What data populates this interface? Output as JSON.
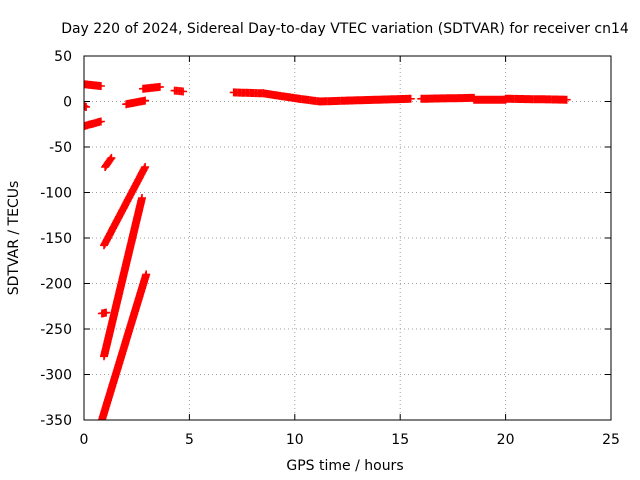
{
  "chart_data": {
    "type": "scatter",
    "title": "Day 220 of 2024, Sidereal Day-to-day VTEC variation (SDTVAR) for receiver cn14",
    "xlabel": "GPS time / hours",
    "ylabel": "SDTVAR / TECUs",
    "xlim": [
      0,
      25
    ],
    "ylim": [
      -350,
      50
    ],
    "xticks": [
      0,
      5,
      10,
      15,
      20,
      25
    ],
    "yticks": [
      50,
      0,
      -50,
      -100,
      -150,
      -200,
      -250,
      -300,
      -350
    ],
    "grid": true,
    "marker": "+",
    "color": "#ff0000",
    "segments": [
      {
        "x": [
          0.0,
          0.8
        ],
        "y": [
          19,
          17
        ]
      },
      {
        "x": [
          0.0,
          0.1
        ],
        "y": [
          -5,
          -6
        ]
      },
      {
        "x": [
          0.0,
          0.8
        ],
        "y": [
          -27,
          -22
        ]
      },
      {
        "x": [
          1.0,
          1.3
        ],
        "y": [
          -72,
          -62
        ]
      },
      {
        "x": [
          0.95,
          2.9
        ],
        "y": [
          -158,
          -72
        ]
      },
      {
        "x": [
          0.85,
          1.05
        ],
        "y": [
          -233,
          -232
        ]
      },
      {
        "x": [
          0.95,
          2.75
        ],
        "y": [
          -280,
          -106
        ]
      },
      {
        "x": [
          0.85,
          2.95
        ],
        "y": [
          -350,
          -190
        ]
      },
      {
        "x": [
          2.0,
          2.9
        ],
        "y": [
          -3,
          1
        ]
      },
      {
        "x": [
          2.8,
          3.6
        ],
        "y": [
          14,
          16
        ]
      },
      {
        "x": [
          4.3,
          4.7
        ],
        "y": [
          12,
          11
        ]
      },
      {
        "x": [
          7.1,
          8.5
        ],
        "y": [
          10,
          9
        ]
      },
      {
        "x": [
          8.5,
          10.2
        ],
        "y": [
          9,
          3
        ]
      },
      {
        "x": [
          10.2,
          11.2
        ],
        "y": [
          3,
          0
        ]
      },
      {
        "x": [
          11.2,
          12.5
        ],
        "y": [
          0,
          1
        ]
      },
      {
        "x": [
          12.5,
          15.5
        ],
        "y": [
          1,
          3
        ]
      },
      {
        "x": [
          16.0,
          18.5
        ],
        "y": [
          3,
          4
        ]
      },
      {
        "x": [
          18.5,
          20.0
        ],
        "y": [
          2,
          2
        ]
      },
      {
        "x": [
          20.0,
          22.9
        ],
        "y": [
          3,
          2
        ]
      }
    ]
  }
}
